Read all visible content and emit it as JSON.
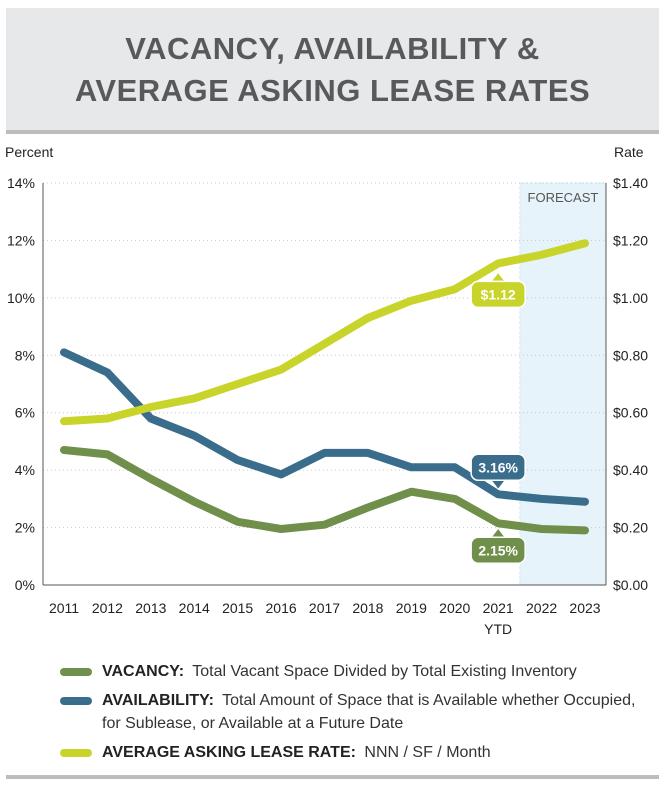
{
  "title_lines": [
    "VACANCY, AVAILABILITY &",
    "AVERAGE ASKING LEASE RATES"
  ],
  "colors": {
    "vacancy": "#6f8f4a",
    "availability": "#3a6d8c",
    "rate": "#c8d42a",
    "forecast": "#e6f3fb"
  },
  "chart_data": {
    "type": "line",
    "x": [
      "2011",
      "2012",
      "2013",
      "2014",
      "2015",
      "2016",
      "2017",
      "2018",
      "2019",
      "2020",
      "2021",
      "2022",
      "2023"
    ],
    "x_sub": {
      "2021": "YTD"
    },
    "ylabel_left": "Percent",
    "ylabel_right": "Rate",
    "ylim_left": [
      0,
      14
    ],
    "ylim_right": [
      0,
      1.4
    ],
    "yticks_left": [
      "0%",
      "2%",
      "4%",
      "6%",
      "8%",
      "10%",
      "12%",
      "14%"
    ],
    "yticks_right": [
      "$0.00",
      "$0.20",
      "$0.40",
      "$0.60",
      "$0.80",
      "$1.00",
      "$1.20",
      "$1.40"
    ],
    "forecast_label": "FORECAST",
    "forecast_from": "2021",
    "series": [
      {
        "key": "vacancy",
        "axis": "left",
        "values": [
          4.7,
          4.55,
          3.7,
          2.9,
          2.2,
          1.95,
          2.1,
          2.7,
          3.25,
          3.0,
          2.15,
          1.95,
          1.9
        ]
      },
      {
        "key": "availability",
        "axis": "left",
        "values": [
          8.1,
          7.4,
          5.8,
          5.2,
          4.35,
          3.85,
          4.6,
          4.6,
          4.1,
          4.1,
          3.16,
          3.0,
          2.9
        ]
      },
      {
        "key": "rate",
        "axis": "right",
        "values": [
          0.57,
          0.58,
          0.62,
          0.65,
          0.7,
          0.75,
          0.84,
          0.93,
          0.99,
          1.03,
          1.12,
          1.15,
          1.19
        ]
      }
    ],
    "callouts": [
      {
        "series": "rate",
        "index": 10,
        "text": "$1.12"
      },
      {
        "series": "availability",
        "index": 10,
        "text": "3.16%"
      },
      {
        "series": "vacancy",
        "index": 10,
        "text": "2.15%"
      }
    ]
  },
  "legend": [
    {
      "key": "vacancy",
      "label": "VACANCY:",
      "text": "Total Vacant Space Divided by Total Existing Inventory"
    },
    {
      "key": "availability",
      "label": "AVAILABILITY:",
      "text": "Total Amount of Space that is Available whether Occupied, for Sublease, or Available at a Future Date"
    },
    {
      "key": "rate",
      "label": "AVERAGE ASKING LEASE RATE:",
      "text": "NNN / SF / Month"
    }
  ]
}
